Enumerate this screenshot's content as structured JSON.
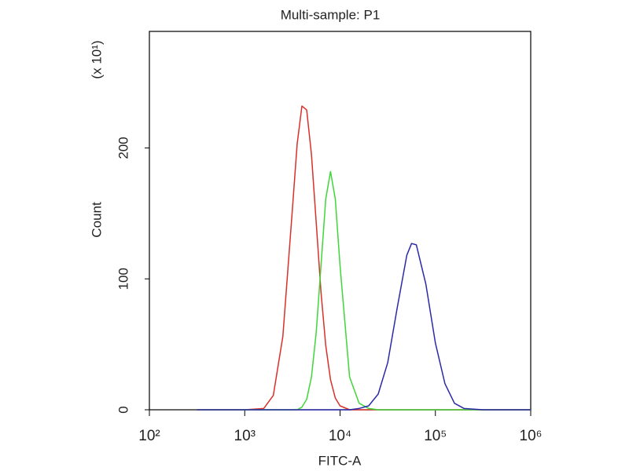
{
  "chart_data": {
    "type": "line",
    "title": "Multi-sample: P1",
    "x_label": "FITC-A",
    "y_label": "Count",
    "y_multiplier": "(x 10¹)",
    "x_scale": "log",
    "xlim": [
      100,
      1000000
    ],
    "xticks": [
      {
        "value": 100,
        "label": "10²"
      },
      {
        "value": 1000,
        "label": "10³"
      },
      {
        "value": 10000,
        "label": "10⁴"
      },
      {
        "value": 100000,
        "label": "10⁵"
      },
      {
        "value": 1000000,
        "label": "10⁶"
      }
    ],
    "ylim": [
      0,
      289
    ],
    "yticks": [
      0,
      100,
      200
    ],
    "x": [
      316,
      1000,
      1585,
      1995,
      2512,
      3162,
      3548,
      3981,
      4467,
      5012,
      5623,
      6310,
      7079,
      7943,
      8913,
      10000,
      12589,
      15849,
      19953,
      25119,
      31623,
      39811,
      50119,
      56234,
      63096,
      79433,
      100000,
      125893,
      158489,
      199526,
      316228,
      630957,
      1000000
    ],
    "series": [
      {
        "color": "#d9302a",
        "values": [
          0,
          0,
          1,
          11,
          56,
          153,
          203,
          232,
          229,
          195,
          143,
          90,
          49,
          23,
          9,
          3,
          0,
          0,
          0,
          0,
          0,
          0,
          0,
          0,
          0,
          0,
          0,
          0,
          0,
          0,
          0,
          0,
          0
        ]
      },
      {
        "color": "#3fd63a",
        "values": [
          0,
          0,
          0,
          0,
          0,
          0,
          0,
          2,
          8,
          25,
          59,
          110,
          161,
          182,
          161,
          110,
          25,
          5,
          1,
          0,
          0,
          0,
          0,
          0,
          0,
          0,
          0,
          0,
          0,
          0,
          0,
          0,
          0
        ]
      },
      {
        "color": "#2a2aa8",
        "values": [
          0,
          0,
          0,
          0,
          0,
          0,
          0,
          0,
          0,
          0,
          0,
          0,
          0,
          0,
          0,
          0,
          0,
          1,
          3,
          12,
          36,
          78,
          118,
          127,
          126,
          96,
          51,
          20,
          5,
          1,
          0,
          0,
          0
        ]
      }
    ]
  }
}
